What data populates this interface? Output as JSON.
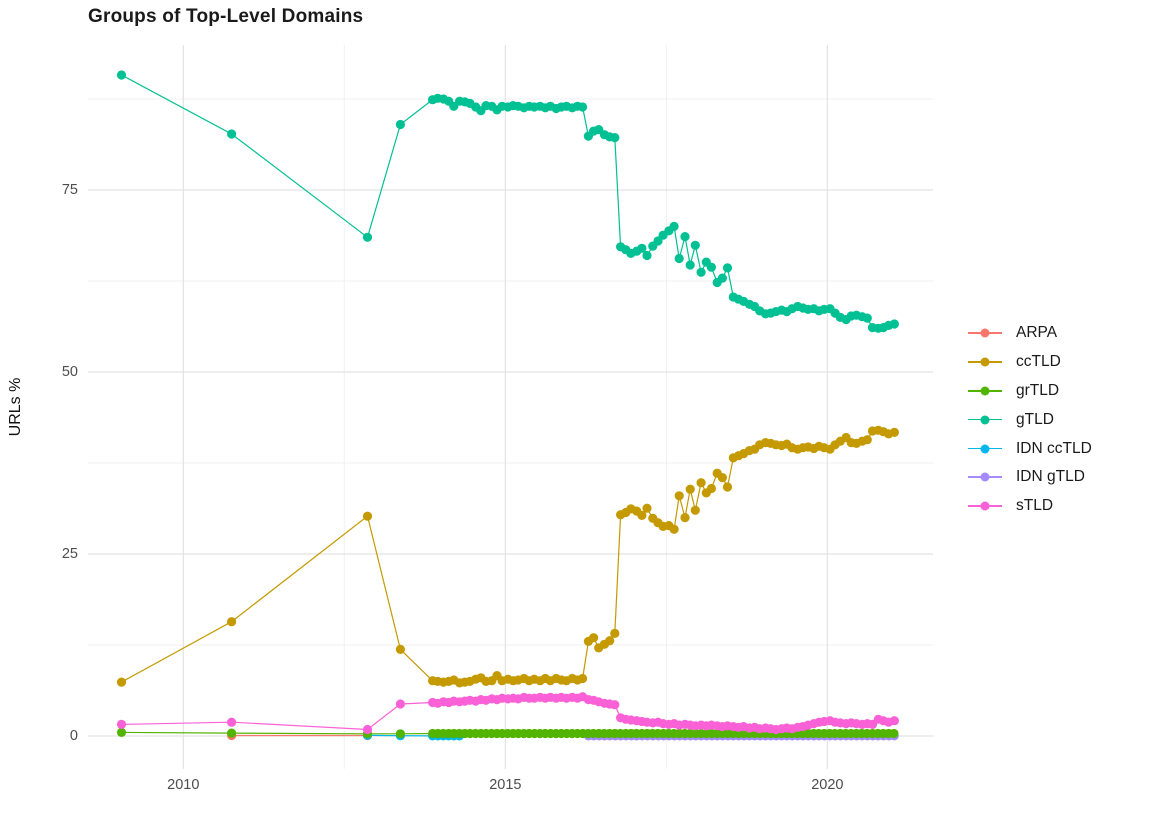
{
  "title": "Groups of Top-Level Domains",
  "chart_data": {
    "type": "line",
    "title": "Groups of Top-Level Domains",
    "xlabel": "",
    "ylabel": "URLs %",
    "x_range": [
      2008.52,
      2021.64
    ],
    "y_range": [
      -4.53,
      94.92
    ],
    "x_ticks": [
      {
        "value": 2010,
        "label": "2010"
      },
      {
        "value": 2015,
        "label": "2015"
      },
      {
        "value": 2020,
        "label": "2020"
      }
    ],
    "x_minor_ticks": [
      2012.5,
      2017.5
    ],
    "y_ticks": [
      {
        "value": 0,
        "label": "0"
      },
      {
        "value": 25,
        "label": "25"
      },
      {
        "value": 50,
        "label": "50"
      },
      {
        "value": 75,
        "label": "75"
      }
    ],
    "y_minor_ticks": [
      12.5,
      37.5,
      62.5,
      87.5
    ],
    "grid": true,
    "legend_position": "right",
    "colors": {
      "background": "#ffffff",
      "major_grid": "#e3e3e3",
      "minor_grid": "#f1f1f1",
      "axis_text": "#4d4d4d",
      "title_text": "#1a1a1a"
    },
    "series": [
      {
        "name": "ARPA",
        "color": "#F8766D",
        "z": 0,
        "points": [
          [
            2010.75,
            0.07
          ],
          [
            2012.86,
            0.07
          ]
        ]
      },
      {
        "name": "ccTLD",
        "color": "#C49A00",
        "z": 4,
        "points": [
          [
            2009.04,
            7.4
          ],
          [
            2010.75,
            15.7
          ],
          [
            2012.86,
            30.2
          ],
          [
            2013.37,
            11.9
          ],
          [
            2013.87,
            7.6
          ],
          [
            2013.95,
            7.5
          ],
          [
            2014.04,
            7.4
          ],
          [
            2014.12,
            7.5
          ],
          [
            2014.2,
            7.7
          ],
          [
            2014.29,
            7.3
          ],
          [
            2014.37,
            7.4
          ],
          [
            2014.45,
            7.5
          ],
          [
            2014.54,
            7.8
          ],
          [
            2014.62,
            8.0
          ],
          [
            2014.7,
            7.5
          ],
          [
            2014.79,
            7.6
          ],
          [
            2014.87,
            8.3
          ],
          [
            2014.95,
            7.6
          ],
          [
            2015.04,
            7.8
          ],
          [
            2015.12,
            7.6
          ],
          [
            2015.2,
            7.7
          ],
          [
            2015.29,
            7.9
          ],
          [
            2015.37,
            7.6
          ],
          [
            2015.45,
            7.8
          ],
          [
            2015.54,
            7.6
          ],
          [
            2015.62,
            7.9
          ],
          [
            2015.7,
            7.6
          ],
          [
            2015.79,
            7.9
          ],
          [
            2015.87,
            7.7
          ],
          [
            2015.95,
            7.6
          ],
          [
            2016.04,
            7.9
          ],
          [
            2016.12,
            7.7
          ],
          [
            2016.2,
            7.9
          ],
          [
            2016.29,
            13.0
          ],
          [
            2016.37,
            13.5
          ],
          [
            2016.45,
            12.1
          ],
          [
            2016.54,
            12.6
          ],
          [
            2016.62,
            13.1
          ],
          [
            2016.7,
            14.1
          ],
          [
            2016.79,
            30.4
          ],
          [
            2016.87,
            30.7
          ],
          [
            2016.95,
            31.2
          ],
          [
            2017.04,
            30.9
          ],
          [
            2017.12,
            30.3
          ],
          [
            2017.2,
            31.3
          ],
          [
            2017.29,
            29.9
          ],
          [
            2017.37,
            29.3
          ],
          [
            2017.45,
            28.8
          ],
          [
            2017.54,
            28.9
          ],
          [
            2017.62,
            28.4
          ],
          [
            2017.7,
            33.0
          ],
          [
            2017.79,
            30.0
          ],
          [
            2017.87,
            33.9
          ],
          [
            2017.95,
            31.0
          ],
          [
            2018.04,
            34.8
          ],
          [
            2018.12,
            33.4
          ],
          [
            2018.2,
            34.0
          ],
          [
            2018.29,
            36.1
          ],
          [
            2018.37,
            35.5
          ],
          [
            2018.45,
            34.2
          ],
          [
            2018.54,
            38.2
          ],
          [
            2018.62,
            38.5
          ],
          [
            2018.7,
            38.8
          ],
          [
            2018.79,
            39.2
          ],
          [
            2018.87,
            39.4
          ],
          [
            2018.95,
            40.0
          ],
          [
            2019.04,
            40.3
          ],
          [
            2019.12,
            40.2
          ],
          [
            2019.2,
            40.0
          ],
          [
            2019.29,
            39.9
          ],
          [
            2019.37,
            40.1
          ],
          [
            2019.45,
            39.6
          ],
          [
            2019.54,
            39.4
          ],
          [
            2019.62,
            39.6
          ],
          [
            2019.7,
            39.7
          ],
          [
            2019.79,
            39.5
          ],
          [
            2019.87,
            39.8
          ],
          [
            2019.95,
            39.6
          ],
          [
            2020.04,
            39.4
          ],
          [
            2020.12,
            40.0
          ],
          [
            2020.2,
            40.5
          ],
          [
            2020.29,
            41.0
          ],
          [
            2020.37,
            40.3
          ],
          [
            2020.45,
            40.2
          ],
          [
            2020.54,
            40.5
          ],
          [
            2020.62,
            40.7
          ],
          [
            2020.7,
            41.9
          ],
          [
            2020.79,
            42.0
          ],
          [
            2020.87,
            41.8
          ],
          [
            2020.95,
            41.5
          ],
          [
            2021.04,
            41.7
          ]
        ]
      },
      {
        "name": "grTLD",
        "color": "#53B400",
        "z": 3,
        "points": [
          [
            2009.04,
            0.5
          ],
          [
            2010.75,
            0.4
          ],
          [
            2012.86,
            0.3
          ],
          [
            2013.37,
            0.3
          ]
        ],
        "flat": {
          "from": 2013.87,
          "to": 2021.05,
          "step": 0.0833,
          "value": 0.35
        }
      },
      {
        "name": "gTLD",
        "color": "#00C094",
        "z": 5,
        "points": [
          [
            2009.04,
            90.8
          ],
          [
            2010.75,
            82.7
          ],
          [
            2012.86,
            68.5
          ],
          [
            2013.37,
            84.0
          ],
          [
            2013.87,
            87.4
          ],
          [
            2013.95,
            87.6
          ],
          [
            2014.04,
            87.5
          ],
          [
            2014.12,
            87.2
          ],
          [
            2014.2,
            86.5
          ],
          [
            2014.29,
            87.2
          ],
          [
            2014.37,
            87.1
          ],
          [
            2014.45,
            86.9
          ],
          [
            2014.54,
            86.4
          ],
          [
            2014.62,
            85.9
          ],
          [
            2014.7,
            86.6
          ],
          [
            2014.79,
            86.5
          ],
          [
            2014.87,
            86.0
          ],
          [
            2014.95,
            86.5
          ],
          [
            2015.04,
            86.4
          ],
          [
            2015.12,
            86.6
          ],
          [
            2015.2,
            86.5
          ],
          [
            2015.29,
            86.3
          ],
          [
            2015.37,
            86.5
          ],
          [
            2015.45,
            86.4
          ],
          [
            2015.54,
            86.5
          ],
          [
            2015.62,
            86.3
          ],
          [
            2015.7,
            86.5
          ],
          [
            2015.79,
            86.2
          ],
          [
            2015.87,
            86.4
          ],
          [
            2015.95,
            86.5
          ],
          [
            2016.04,
            86.3
          ],
          [
            2016.12,
            86.5
          ],
          [
            2016.2,
            86.4
          ],
          [
            2016.29,
            82.4
          ],
          [
            2016.37,
            83.1
          ],
          [
            2016.45,
            83.3
          ],
          [
            2016.54,
            82.6
          ],
          [
            2016.62,
            82.3
          ],
          [
            2016.7,
            82.2
          ],
          [
            2016.79,
            67.2
          ],
          [
            2016.87,
            66.8
          ],
          [
            2016.95,
            66.3
          ],
          [
            2017.04,
            66.6
          ],
          [
            2017.12,
            67.0
          ],
          [
            2017.2,
            66.0
          ],
          [
            2017.29,
            67.3
          ],
          [
            2017.37,
            68.0
          ],
          [
            2017.45,
            68.8
          ],
          [
            2017.54,
            69.4
          ],
          [
            2017.62,
            70.0
          ],
          [
            2017.7,
            65.6
          ],
          [
            2017.79,
            68.6
          ],
          [
            2017.87,
            64.7
          ],
          [
            2017.95,
            67.4
          ],
          [
            2018.04,
            63.7
          ],
          [
            2018.12,
            65.1
          ],
          [
            2018.2,
            64.4
          ],
          [
            2018.29,
            62.3
          ],
          [
            2018.37,
            62.9
          ],
          [
            2018.45,
            64.3
          ],
          [
            2018.54,
            60.3
          ],
          [
            2018.62,
            60.0
          ],
          [
            2018.7,
            59.7
          ],
          [
            2018.79,
            59.3
          ],
          [
            2018.87,
            59.0
          ],
          [
            2018.95,
            58.4
          ],
          [
            2019.04,
            58.0
          ],
          [
            2019.12,
            58.1
          ],
          [
            2019.2,
            58.3
          ],
          [
            2019.29,
            58.5
          ],
          [
            2019.37,
            58.3
          ],
          [
            2019.45,
            58.7
          ],
          [
            2019.54,
            59.0
          ],
          [
            2019.62,
            58.8
          ],
          [
            2019.7,
            58.6
          ],
          [
            2019.79,
            58.7
          ],
          [
            2019.87,
            58.4
          ],
          [
            2019.95,
            58.6
          ],
          [
            2020.04,
            58.7
          ],
          [
            2020.12,
            58.1
          ],
          [
            2020.2,
            57.5
          ],
          [
            2020.29,
            57.2
          ],
          [
            2020.37,
            57.7
          ],
          [
            2020.45,
            57.8
          ],
          [
            2020.54,
            57.6
          ],
          [
            2020.62,
            57.4
          ],
          [
            2020.7,
            56.1
          ],
          [
            2020.79,
            56.0
          ],
          [
            2020.87,
            56.1
          ],
          [
            2020.95,
            56.4
          ],
          [
            2021.04,
            56.6
          ]
        ]
      },
      {
        "name": "IDN ccTLD",
        "color": "#00B6EB",
        "z": 1,
        "points": [
          [
            2012.86,
            0.1
          ],
          [
            2013.37,
            0.04
          ]
        ],
        "flat": {
          "from": 2013.87,
          "to": 2014.3,
          "step": 0.0833,
          "value": 0.02
        }
      },
      {
        "name": "IDN gTLD",
        "color": "#A58AFF",
        "z": 2,
        "points": [],
        "flat": {
          "from": 2016.29,
          "to": 2021.05,
          "step": 0.0833,
          "value": 0.02
        }
      },
      {
        "name": "sTLD",
        "color": "#FB61D7",
        "z": 6,
        "points": [
          [
            2009.04,
            1.6
          ],
          [
            2010.75,
            1.9
          ],
          [
            2012.86,
            0.9
          ],
          [
            2013.37,
            4.4
          ],
          [
            2013.87,
            4.6
          ],
          [
            2013.95,
            4.5
          ],
          [
            2014.04,
            4.7
          ],
          [
            2014.12,
            4.6
          ],
          [
            2014.2,
            4.8
          ],
          [
            2014.29,
            4.7
          ],
          [
            2014.37,
            4.8
          ],
          [
            2014.45,
            4.9
          ],
          [
            2014.54,
            4.8
          ],
          [
            2014.62,
            5.0
          ],
          [
            2014.7,
            4.9
          ],
          [
            2014.79,
            5.1
          ],
          [
            2014.87,
            5.0
          ],
          [
            2014.95,
            5.2
          ],
          [
            2015.04,
            5.1
          ],
          [
            2015.12,
            5.2
          ],
          [
            2015.2,
            5.1
          ],
          [
            2015.29,
            5.3
          ],
          [
            2015.37,
            5.2
          ],
          [
            2015.45,
            5.2
          ],
          [
            2015.54,
            5.3
          ],
          [
            2015.62,
            5.2
          ],
          [
            2015.7,
            5.3
          ],
          [
            2015.79,
            5.2
          ],
          [
            2015.87,
            5.3
          ],
          [
            2015.95,
            5.2
          ],
          [
            2016.04,
            5.3
          ],
          [
            2016.12,
            5.2
          ],
          [
            2016.2,
            5.4
          ],
          [
            2016.29,
            5.0
          ],
          [
            2016.37,
            4.9
          ],
          [
            2016.45,
            4.7
          ],
          [
            2016.54,
            4.5
          ],
          [
            2016.62,
            4.4
          ],
          [
            2016.7,
            4.3
          ],
          [
            2016.79,
            2.5
          ],
          [
            2016.87,
            2.3
          ],
          [
            2016.95,
            2.2
          ],
          [
            2017.04,
            2.1
          ],
          [
            2017.12,
            2.0
          ],
          [
            2017.2,
            1.9
          ],
          [
            2017.29,
            1.8
          ],
          [
            2017.37,
            1.9
          ],
          [
            2017.45,
            1.7
          ],
          [
            2017.54,
            1.6
          ],
          [
            2017.62,
            1.7
          ],
          [
            2017.7,
            1.5
          ],
          [
            2017.79,
            1.6
          ],
          [
            2017.87,
            1.5
          ],
          [
            2017.95,
            1.4
          ],
          [
            2018.04,
            1.5
          ],
          [
            2018.12,
            1.4
          ],
          [
            2018.2,
            1.5
          ],
          [
            2018.29,
            1.4
          ],
          [
            2018.37,
            1.3
          ],
          [
            2018.45,
            1.4
          ],
          [
            2018.54,
            1.3
          ],
          [
            2018.62,
            1.2
          ],
          [
            2018.7,
            1.3
          ],
          [
            2018.79,
            1.1
          ],
          [
            2018.87,
            1.2
          ],
          [
            2018.95,
            1.0
          ],
          [
            2019.04,
            1.1
          ],
          [
            2019.12,
            1.0
          ],
          [
            2019.2,
            0.9
          ],
          [
            2019.29,
            1.0
          ],
          [
            2019.37,
            1.1
          ],
          [
            2019.45,
            1.0
          ],
          [
            2019.54,
            1.2
          ],
          [
            2019.62,
            1.3
          ],
          [
            2019.7,
            1.5
          ],
          [
            2019.79,
            1.7
          ],
          [
            2019.87,
            1.9
          ],
          [
            2019.95,
            2.0
          ],
          [
            2020.04,
            2.1
          ],
          [
            2020.12,
            1.9
          ],
          [
            2020.2,
            1.8
          ],
          [
            2020.29,
            1.7
          ],
          [
            2020.37,
            1.8
          ],
          [
            2020.45,
            1.7
          ],
          [
            2020.54,
            1.6
          ],
          [
            2020.62,
            1.7
          ],
          [
            2020.7,
            1.6
          ],
          [
            2020.79,
            2.3
          ],
          [
            2020.87,
            2.1
          ],
          [
            2020.95,
            1.9
          ],
          [
            2021.04,
            2.1
          ]
        ]
      }
    ]
  }
}
